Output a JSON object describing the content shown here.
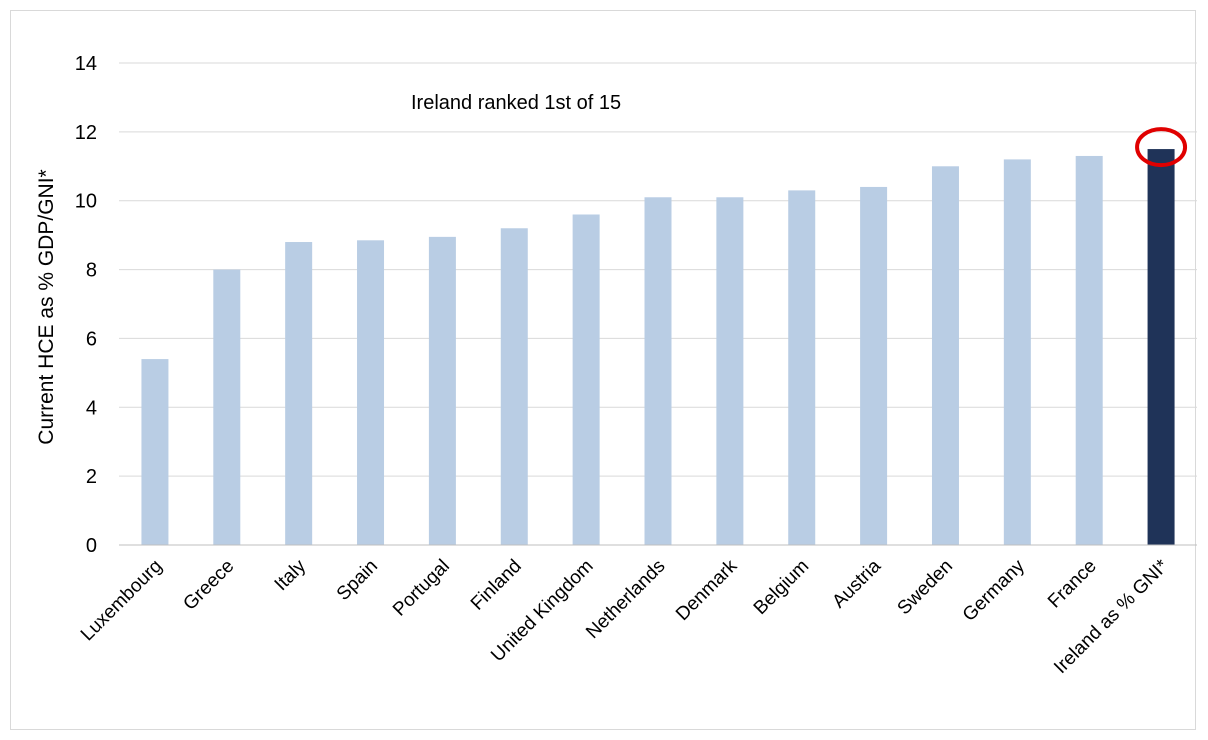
{
  "colors": {
    "bar": "#b9cde4",
    "highlight_bar": "#1f3358",
    "highlight_circle": "#e00000",
    "grid": "#d9d9d9",
    "axis": "#bfbfbf"
  },
  "chart_data": {
    "type": "bar",
    "title": "",
    "xlabel": "",
    "ylabel": "Current HCE as % GDP/GNI*",
    "ylim": [
      0,
      14
    ],
    "yticks": [
      0,
      2,
      4,
      6,
      8,
      10,
      12,
      14
    ],
    "grid": true,
    "annotation": "Ireland ranked 1st of 15",
    "categories": [
      "Luxembourg",
      "Greece",
      "Italy",
      "Spain",
      "Portugal",
      "Finland",
      "United Kingdom",
      "Netherlands",
      "Denmark",
      "Belgium",
      "Austria",
      "Sweden",
      "Germany",
      "France",
      "Ireland as % GNI*"
    ],
    "values": [
      5.4,
      8.0,
      8.8,
      8.85,
      8.95,
      9.2,
      9.6,
      10.1,
      10.1,
      10.3,
      10.4,
      11.0,
      11.2,
      11.3,
      11.5
    ],
    "highlight_category": "Ireland as % GNI*"
  }
}
